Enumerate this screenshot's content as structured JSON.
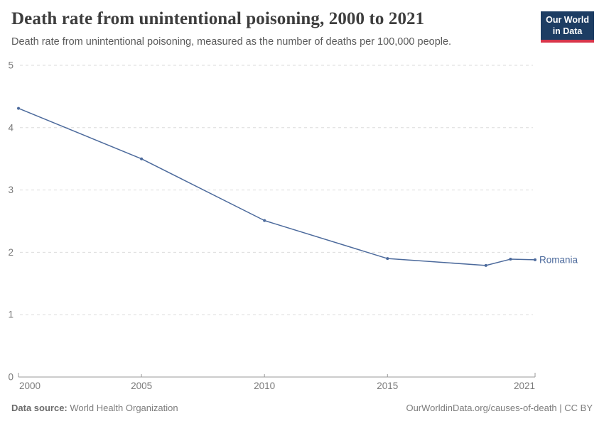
{
  "header": {
    "title": "Death rate from unintentional poisoning, 2000 to 2021",
    "subtitle": "Death rate from unintentional poisoning, measured as the number of deaths per 100,000 people.",
    "logo": {
      "line1": "Our World",
      "line2": "in Data"
    }
  },
  "chart_data": {
    "type": "line",
    "title": "Death rate from unintentional poisoning, 2000 to 2021",
    "xlabel": "",
    "ylabel": "",
    "xlim": [
      2000,
      2021
    ],
    "ylim": [
      0,
      5
    ],
    "x_ticks": [
      2000,
      2005,
      2010,
      2015,
      2021
    ],
    "y_ticks": [
      0,
      1,
      2,
      3,
      4,
      5
    ],
    "grid": "horizontal-dashed",
    "legend_position": "end-of-line-label",
    "series": [
      {
        "name": "Romania",
        "x": [
          2000,
          2005,
          2010,
          2015,
          2019,
          2020,
          2021
        ],
        "values": [
          4.31,
          3.5,
          2.51,
          1.9,
          1.79,
          1.89,
          1.88
        ],
        "color": "#4C6A9C"
      }
    ]
  },
  "footer": {
    "source_label": "Data source:",
    "source_value": "World Health Organization",
    "attribution": "OurWorldinData.org/causes-of-death | CC BY"
  },
  "colors": {
    "line": "#4C6A9C",
    "logo_navy": "#1D3D63",
    "logo_red": "#D8354A",
    "grid": "#DBDBDB",
    "axis": "#999999",
    "tick_text": "#7A7A7A",
    "title_text": "#3D3D3D",
    "subtitle_text": "#5B5B5B"
  }
}
